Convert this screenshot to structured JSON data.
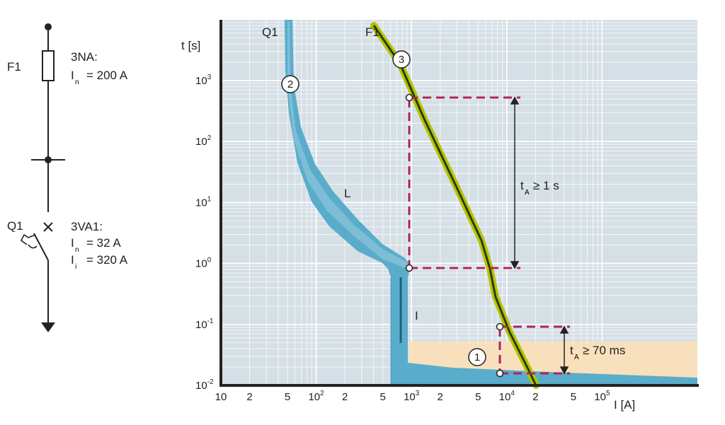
{
  "schematic": {
    "fuse_ref": "F1",
    "fuse_type": "3NA:",
    "fuse_in_sym": "I",
    "fuse_in_sub": "n",
    "fuse_in_val": "= 200 A",
    "breaker_ref": "Q1",
    "breaker_type": "3VA1:",
    "breaker_in_sym": "I",
    "breaker_in_sub": "n",
    "breaker_in_val": "= 32 A",
    "breaker_ii_sym": "I",
    "breaker_ii_sub": "i",
    "breaker_ii_val": "= 320 A"
  },
  "chart": {
    "y_axis_label": "t [s]",
    "x_axis_label": "I [A]",
    "curve_q1_label": "Q1",
    "curve_f1_label": "F1",
    "region_l_label": "L",
    "region_i_label": "I",
    "marker_1": "1",
    "marker_2": "2",
    "marker_3": "3",
    "ta_1s_prefix": "t",
    "ta_1s_sub": "A",
    "ta_1s_text": "≥ 1 s",
    "ta_70ms_prefix": "t",
    "ta_70ms_sub": "A",
    "ta_70ms_text": "≥ 70 ms",
    "x_ticks": [
      "10",
      "2",
      "5",
      "10",
      "2",
      "5",
      "10",
      "2",
      "5",
      "10",
      "2",
      "5",
      "10"
    ],
    "x_tick_sups": [
      "",
      "",
      "",
      "2",
      "",
      "",
      "3",
      "",
      "",
      "4",
      "",
      "",
      "5"
    ],
    "y_ticks": [
      "10",
      "10",
      "10",
      "10",
      "10",
      "10"
    ],
    "y_tick_sups": [
      "3",
      "2",
      "1",
      "0",
      "-1",
      "-2"
    ]
  },
  "colors": {
    "chart_bg": "#d5dfe6",
    "grid": "#ffffff",
    "q1_band": "#5aaccb",
    "q1_band_light": "#8cc6da",
    "f1_outline": "#b4c400",
    "f1_core": "#2c3a10",
    "selectivity_zone": "#fbe0b8",
    "dash": "#b0245c"
  }
}
